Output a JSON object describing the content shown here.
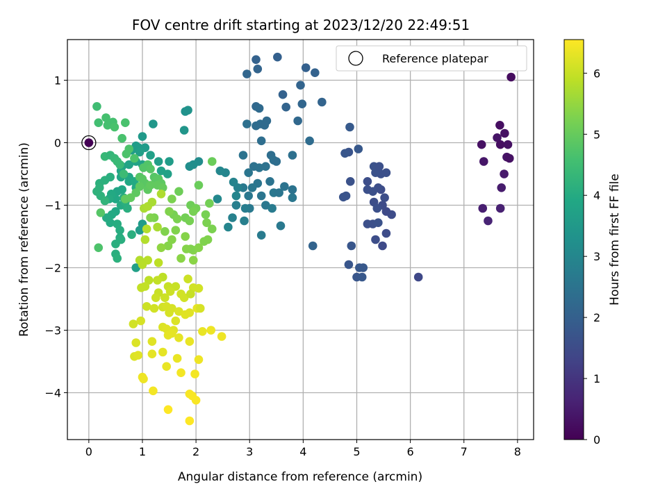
{
  "chart_data": {
    "type": "scatter",
    "title": "FOV centre drift starting at 2023/12/20 22:49:51",
    "xlabel": "Angular distance from reference (arcmin)",
    "ylabel": "Rotation from reference (arcmin)",
    "xlim": [
      -0.4,
      8.3
    ],
    "ylim": [
      -4.75,
      1.65
    ],
    "xticks": [
      0,
      1,
      2,
      3,
      4,
      5,
      6,
      7,
      8
    ],
    "xtick_labels": [
      "0",
      "1",
      "2",
      "3",
      "4",
      "5",
      "6",
      "7",
      "8"
    ],
    "yticks": [
      1,
      0,
      -1,
      -2,
      -3,
      -4
    ],
    "ytick_labels": [
      "1",
      "0",
      "−1",
      "−2",
      "−3",
      "−4"
    ],
    "grid": true,
    "legend": {
      "label": "Reference platepar",
      "position": "top-right"
    },
    "colorbar": {
      "label": "Hours from first FF file",
      "colormap": "viridis",
      "range": [
        0,
        6.55
      ],
      "ticks": [
        0,
        1,
        2,
        3,
        4,
        5,
        6
      ],
      "tick_labels": [
        "0",
        "1",
        "2",
        "3",
        "4",
        "5",
        "6"
      ]
    },
    "reference": {
      "x": 0,
      "y": 0,
      "label": "Reference platepar"
    },
    "points": [
      [
        7.88,
        1.05,
        0.2
      ],
      [
        7.67,
        0.28,
        0.25
      ],
      [
        7.76,
        0.15,
        0.3
      ],
      [
        7.62,
        0.08,
        0.35
      ],
      [
        7.33,
        -0.03,
        0.3
      ],
      [
        7.68,
        -0.03,
        0.25
      ],
      [
        7.82,
        -0.03,
        0.3
      ],
      [
        7.8,
        -0.23,
        0.35
      ],
      [
        7.85,
        -0.25,
        0.3
      ],
      [
        7.37,
        -0.3,
        0.4
      ],
      [
        7.75,
        -0.5,
        0.45
      ],
      [
        7.7,
        -0.72,
        0.5
      ],
      [
        7.35,
        -1.05,
        0.55
      ],
      [
        7.68,
        -1.05,
        0.6
      ],
      [
        7.45,
        -1.25,
        0.65
      ],
      [
        6.15,
        -2.15,
        1.4
      ],
      [
        5.48,
        -1.65,
        1.45
      ],
      [
        5.55,
        -1.45,
        1.5
      ],
      [
        5.35,
        -1.55,
        1.55
      ],
      [
        5.65,
        -1.15,
        1.5
      ],
      [
        5.55,
        -1.1,
        1.45
      ],
      [
        5.48,
        -1.0,
        1.5
      ],
      [
        5.32,
        -0.95,
        1.55
      ],
      [
        5.38,
        -1.05,
        1.6
      ],
      [
        5.3,
        -1.3,
        1.6
      ],
      [
        5.4,
        -1.28,
        1.65
      ],
      [
        5.2,
        -1.3,
        1.6
      ],
      [
        5.52,
        -0.88,
        1.55
      ],
      [
        5.45,
        -0.75,
        1.5
      ],
      [
        5.4,
        -0.72,
        1.55
      ],
      [
        5.3,
        -0.78,
        1.6
      ],
      [
        5.45,
        -0.5,
        1.6
      ],
      [
        5.35,
        -0.48,
        1.65
      ],
      [
        5.55,
        -0.48,
        1.6
      ],
      [
        5.32,
        -0.38,
        1.65
      ],
      [
        5.42,
        -0.38,
        1.6
      ],
      [
        5.2,
        -0.62,
        1.55
      ],
      [
        5.2,
        -0.75,
        1.6
      ],
      [
        4.88,
        -0.62,
        1.65
      ],
      [
        4.8,
        -0.85,
        1.7
      ],
      [
        4.75,
        -0.87,
        1.7
      ],
      [
        4.9,
        -1.65,
        1.75
      ],
      [
        4.85,
        -1.95,
        1.75
      ],
      [
        5.05,
        -2.0,
        1.8
      ],
      [
        5.12,
        -2.0,
        1.8
      ],
      [
        5.0,
        -2.15,
        1.75
      ],
      [
        5.1,
        -2.15,
        1.8
      ],
      [
        4.85,
        -0.15,
        1.7
      ],
      [
        4.78,
        -0.17,
        1.75
      ],
      [
        5.03,
        -0.1,
        1.8
      ],
      [
        4.87,
        0.25,
        1.85
      ],
      [
        3.52,
        1.37,
        2.0
      ],
      [
        3.12,
        1.33,
        2.05
      ],
      [
        3.15,
        1.18,
        2.1
      ],
      [
        2.95,
        1.1,
        2.15
      ],
      [
        4.05,
        1.2,
        2.0
      ],
      [
        4.22,
        1.12,
        2.05
      ],
      [
        3.95,
        0.92,
        2.1
      ],
      [
        3.62,
        0.77,
        2.05
      ],
      [
        4.35,
        0.65,
        2.1
      ],
      [
        3.98,
        0.62,
        2.15
      ],
      [
        3.68,
        0.57,
        2.1
      ],
      [
        3.12,
        0.58,
        2.2
      ],
      [
        3.18,
        0.55,
        2.25
      ],
      [
        3.9,
        0.35,
        2.2
      ],
      [
        3.32,
        0.35,
        2.25
      ],
      [
        3.2,
        0.3,
        2.3
      ],
      [
        3.28,
        0.28,
        2.25
      ],
      [
        3.12,
        0.27,
        2.3
      ],
      [
        2.95,
        0.3,
        2.4
      ],
      [
        3.22,
        0.03,
        2.35
      ],
      [
        4.12,
        0.03,
        2.3
      ],
      [
        3.4,
        -0.2,
        2.35
      ],
      [
        3.45,
        -0.28,
        2.4
      ],
      [
        3.5,
        -0.3,
        2.35
      ],
      [
        3.08,
        -0.38,
        2.45
      ],
      [
        3.18,
        -0.4,
        2.5
      ],
      [
        3.3,
        -0.38,
        2.45
      ],
      [
        2.88,
        -0.2,
        2.5
      ],
      [
        3.8,
        -0.2,
        2.4
      ],
      [
        2.98,
        -0.48,
        2.55
      ],
      [
        3.38,
        -0.62,
        2.5
      ],
      [
        3.15,
        -0.65,
        2.55
      ],
      [
        3.05,
        -0.72,
        2.6
      ],
      [
        3.65,
        -0.7,
        2.5
      ],
      [
        3.22,
        -0.85,
        2.55
      ],
      [
        3.45,
        -0.8,
        2.6
      ],
      [
        3.55,
        -0.8,
        2.55
      ],
      [
        3.8,
        -0.75,
        2.5
      ],
      [
        2.88,
        -0.72,
        2.65
      ],
      [
        2.98,
        -0.85,
        2.6
      ],
      [
        3.0,
        -1.05,
        2.65
      ],
      [
        3.3,
        -1.0,
        2.6
      ],
      [
        3.42,
        -1.05,
        2.7
      ],
      [
        3.8,
        -0.88,
        2.6
      ],
      [
        3.58,
        -1.33,
        2.65
      ],
      [
        3.22,
        -1.48,
        2.7
      ],
      [
        2.92,
        -1.05,
        2.75
      ],
      [
        2.75,
        -1.0,
        2.8
      ],
      [
        2.9,
        -1.25,
        2.8
      ],
      [
        2.68,
        -1.2,
        2.85
      ],
      [
        4.18,
        -1.65,
        2.1
      ],
      [
        2.78,
        -0.72,
        2.85
      ],
      [
        2.7,
        -0.63,
        2.9
      ],
      [
        2.55,
        -0.48,
        2.95
      ],
      [
        2.45,
        -0.45,
        3.0
      ],
      [
        2.75,
        -0.85,
        2.95
      ],
      [
        2.6,
        -1.35,
        2.95
      ],
      [
        2.4,
        -0.9,
        3.05
      ],
      [
        1.85,
        0.52,
        3.35
      ],
      [
        1.8,
        0.5,
        3.3
      ],
      [
        1.78,
        0.2,
        3.4
      ],
      [
        1.2,
        0.3,
        3.45
      ],
      [
        1.0,
        0.1,
        3.5
      ],
      [
        0.88,
        -0.05,
        3.55
      ],
      [
        0.93,
        -0.08,
        3.6
      ],
      [
        1.05,
        -0.08,
        3.55
      ],
      [
        0.8,
        -0.12,
        3.6
      ],
      [
        0.95,
        -0.15,
        3.65
      ],
      [
        1.15,
        -0.2,
        3.7
      ],
      [
        1.3,
        -0.3,
        3.65
      ],
      [
        1.5,
        -0.3,
        3.6
      ],
      [
        1.47,
        -0.5,
        3.7
      ],
      [
        1.35,
        -0.45,
        3.75
      ],
      [
        1.0,
        -0.35,
        3.75
      ],
      [
        0.88,
        -0.3,
        3.8
      ],
      [
        0.75,
        -0.35,
        3.8
      ],
      [
        0.62,
        -0.38,
        3.8
      ],
      [
        0.6,
        -0.45,
        3.85
      ],
      [
        0.6,
        -0.55,
        3.85
      ],
      [
        0.75,
        -0.55,
        3.9
      ],
      [
        0.75,
        -0.62,
        3.9
      ],
      [
        0.85,
        -0.62,
        3.95
      ],
      [
        0.88,
        -0.72,
        3.95
      ],
      [
        0.62,
        -0.75,
        3.9
      ],
      [
        0.53,
        -0.78,
        3.85
      ],
      [
        0.5,
        -0.9,
        3.9
      ],
      [
        0.42,
        -0.82,
        3.95
      ],
      [
        0.38,
        -0.9,
        4.0
      ],
      [
        0.6,
        -1.0,
        4.0
      ],
      [
        0.5,
        -1.1,
        3.9
      ],
      [
        0.43,
        -1.15,
        3.95
      ],
      [
        0.33,
        -1.2,
        4.0
      ],
      [
        0.4,
        -1.28,
        4.0
      ],
      [
        0.53,
        -1.3,
        4.05
      ],
      [
        0.58,
        -1.4,
        4.05
      ],
      [
        0.8,
        -1.47,
        4.1
      ],
      [
        0.58,
        -1.52,
        4.05
      ],
      [
        0.5,
        -1.62,
        4.1
      ],
      [
        0.5,
        -1.78,
        4.1
      ],
      [
        0.53,
        -1.85,
        4.15
      ],
      [
        0.6,
        -1.55,
        4.1
      ],
      [
        0.95,
        -1.4,
        3.6
      ],
      [
        1.0,
        -1.3,
        3.55
      ],
      [
        0.88,
        -2.0,
        3.7
      ],
      [
        1.88,
        -0.38,
        3.2
      ],
      [
        2.05,
        -0.3,
        3.15
      ],
      [
        1.95,
        -0.35,
        3.2
      ],
      [
        0.3,
        -0.6,
        4.15
      ],
      [
        0.2,
        -0.65,
        4.15
      ],
      [
        0.15,
        -0.78,
        4.2
      ],
      [
        0.22,
        -0.85,
        4.2
      ],
      [
        0.3,
        -0.93,
        4.25
      ],
      [
        0.2,
        -0.72,
        4.2
      ],
      [
        0.4,
        -0.55,
        4.1
      ],
      [
        0.68,
        -0.95,
        4.1
      ],
      [
        0.72,
        -1.05,
        4.1
      ],
      [
        0.65,
        -0.88,
        4.05
      ],
      [
        0.3,
        -0.22,
        4.35
      ],
      [
        0.4,
        -0.2,
        4.3
      ],
      [
        0.48,
        -0.25,
        4.35
      ],
      [
        0.53,
        -0.3,
        4.4
      ],
      [
        0.58,
        -0.35,
        4.4
      ],
      [
        0.65,
        -0.5,
        4.45
      ],
      [
        0.15,
        0.58,
        4.5
      ],
      [
        0.18,
        0.32,
        4.55
      ],
      [
        0.32,
        0.4,
        4.6
      ],
      [
        0.45,
        0.33,
        4.6
      ],
      [
        0.35,
        0.28,
        4.6
      ],
      [
        0.62,
        0.07,
        4.65
      ],
      [
        0.68,
        0.32,
        4.65
      ],
      [
        0.48,
        0.25,
        4.65
      ],
      [
        0.75,
        -0.1,
        4.7
      ],
      [
        0.7,
        -0.18,
        4.7
      ],
      [
        0.85,
        -0.25,
        4.7
      ],
      [
        1.02,
        -0.4,
        4.75
      ],
      [
        1.1,
        -0.35,
        4.75
      ],
      [
        1.15,
        -0.42,
        4.8
      ],
      [
        1.22,
        -0.55,
        4.8
      ],
      [
        1.25,
        -0.6,
        4.85
      ],
      [
        1.3,
        -0.58,
        4.85
      ],
      [
        1.35,
        -0.65,
        4.9
      ],
      [
        0.95,
        -0.55,
        4.8
      ],
      [
        1.0,
        -0.58,
        4.85
      ],
      [
        1.05,
        -0.65,
        4.85
      ],
      [
        0.95,
        -0.7,
        4.9
      ],
      [
        1.1,
        -0.75,
        4.9
      ],
      [
        1.15,
        -0.68,
        4.95
      ],
      [
        0.88,
        -0.8,
        4.9
      ],
      [
        0.78,
        -0.88,
        4.95
      ],
      [
        0.68,
        -0.9,
        4.95
      ],
      [
        0.22,
        -1.12,
        4.8
      ],
      [
        0.18,
        -1.68,
        4.7
      ],
      [
        1.28,
        -0.68,
        4.95
      ],
      [
        1.38,
        -0.72,
        5.0
      ],
      [
        2.3,
        -0.3,
        5.05
      ],
      [
        2.05,
        -0.68,
        5.05
      ],
      [
        1.68,
        -0.78,
        5.1
      ],
      [
        1.9,
        -1.0,
        5.1
      ],
      [
        2.0,
        -1.05,
        5.15
      ],
      [
        2.25,
        -0.97,
        5.15
      ],
      [
        1.95,
        -1.1,
        5.2
      ],
      [
        1.8,
        -1.2,
        5.15
      ],
      [
        1.58,
        -1.15,
        5.2
      ],
      [
        1.65,
        -1.22,
        5.25
      ],
      [
        1.88,
        -1.25,
        5.2
      ],
      [
        2.18,
        -1.15,
        5.2
      ],
      [
        2.2,
        -1.28,
        5.25
      ],
      [
        2.3,
        -1.38,
        5.25
      ],
      [
        2.22,
        -1.55,
        5.3
      ],
      [
        2.15,
        -1.58,
        5.3
      ],
      [
        2.05,
        -1.68,
        5.35
      ],
      [
        1.95,
        -1.72,
        5.35
      ],
      [
        1.9,
        -1.7,
        5.3
      ],
      [
        1.82,
        -1.7,
        5.35
      ],
      [
        1.95,
        -1.88,
        5.4
      ],
      [
        1.62,
        -1.4,
        5.3
      ],
      [
        1.55,
        -1.55,
        5.35
      ],
      [
        1.42,
        -1.42,
        5.3
      ],
      [
        1.22,
        -1.2,
        5.25
      ],
      [
        1.15,
        -1.2,
        5.3
      ],
      [
        1.55,
        -0.9,
        5.25
      ],
      [
        1.5,
        -1.1,
        5.3
      ],
      [
        1.8,
        -1.5,
        5.35
      ],
      [
        1.72,
        -1.85,
        5.4
      ],
      [
        1.48,
        -1.65,
        5.35
      ],
      [
        1.35,
        -1.68,
        5.45
      ],
      [
        1.03,
        -1.05,
        5.7
      ],
      [
        1.1,
        -1.02,
        5.75
      ],
      [
        1.18,
        -0.95,
        5.7
      ],
      [
        1.35,
        -0.82,
        5.75
      ],
      [
        1.28,
        -1.35,
        5.7
      ],
      [
        1.08,
        -1.38,
        5.8
      ],
      [
        1.05,
        -1.55,
        5.8
      ],
      [
        0.95,
        -1.88,
        5.8
      ],
      [
        1.1,
        -1.88,
        5.85
      ],
      [
        1.0,
        -1.95,
        5.85
      ],
      [
        1.3,
        -1.92,
        5.9
      ],
      [
        1.38,
        -2.15,
        5.9
      ],
      [
        1.28,
        -2.2,
        5.95
      ],
      [
        1.12,
        -2.2,
        5.9
      ],
      [
        0.98,
        -2.32,
        5.95
      ],
      [
        1.05,
        -2.3,
        5.95
      ],
      [
        1.48,
        -2.3,
        6.0
      ],
      [
        1.62,
        -2.3,
        6.0
      ],
      [
        1.52,
        -2.38,
        6.05
      ],
      [
        1.42,
        -2.48,
        6.05
      ],
      [
        1.3,
        -2.4,
        6.0
      ],
      [
        1.25,
        -2.48,
        6.05
      ],
      [
        1.78,
        -2.48,
        6.1
      ],
      [
        1.72,
        -2.42,
        6.1
      ],
      [
        1.08,
        -2.62,
        6.05
      ],
      [
        1.22,
        -2.65,
        6.1
      ],
      [
        1.38,
        -2.63,
        6.1
      ],
      [
        1.45,
        -2.62,
        6.15
      ],
      [
        1.55,
        -2.65,
        6.15
      ],
      [
        1.5,
        -2.72,
        6.15
      ],
      [
        1.68,
        -2.7,
        6.2
      ],
      [
        1.62,
        -2.85,
        6.2
      ],
      [
        1.8,
        -2.75,
        6.25
      ],
      [
        1.88,
        -2.72,
        6.25
      ],
      [
        2.02,
        -2.65,
        6.3
      ],
      [
        1.38,
        -2.95,
        6.2
      ],
      [
        1.45,
        -2.98,
        6.25
      ],
      [
        1.58,
        -3.0,
        6.25
      ],
      [
        1.55,
        -3.05,
        6.3
      ],
      [
        1.48,
        -3.08,
        6.3
      ],
      [
        1.68,
        -3.12,
        6.3
      ],
      [
        1.88,
        -3.18,
        6.35
      ],
      [
        2.12,
        -3.02,
        6.35
      ],
      [
        2.28,
        -3.0,
        6.4
      ],
      [
        2.48,
        -3.1,
        6.4
      ],
      [
        0.83,
        -2.9,
        6.1
      ],
      [
        0.97,
        -2.85,
        6.15
      ],
      [
        0.88,
        -3.2,
        6.2
      ],
      [
        0.85,
        -3.42,
        6.2
      ],
      [
        0.92,
        -3.4,
        6.25
      ],
      [
        1.18,
        -3.18,
        6.25
      ],
      [
        1.38,
        -3.35,
        6.3
      ],
      [
        1.18,
        -3.38,
        6.3
      ],
      [
        1.65,
        -3.45,
        6.35
      ],
      [
        1.45,
        -3.58,
        6.35
      ],
      [
        1.0,
        -3.75,
        6.4
      ],
      [
        1.02,
        -3.78,
        6.4
      ],
      [
        1.72,
        -3.68,
        6.45
      ],
      [
        1.98,
        -3.7,
        6.45
      ],
      [
        2.05,
        -3.47,
        6.4
      ],
      [
        1.2,
        -3.97,
        6.45
      ],
      [
        1.88,
        -4.02,
        6.5
      ],
      [
        1.93,
        -4.05,
        6.5
      ],
      [
        2.0,
        -4.12,
        6.5
      ],
      [
        1.48,
        -4.27,
        6.55
      ],
      [
        1.88,
        -4.45,
        6.55
      ],
      [
        1.85,
        -2.18,
        6.05
      ],
      [
        1.95,
        -2.32,
        6.1
      ],
      [
        2.05,
        -2.33,
        6.1
      ],
      [
        2.08,
        -2.65,
        6.15
      ],
      [
        1.9,
        -2.42,
        6.0
      ]
    ]
  }
}
